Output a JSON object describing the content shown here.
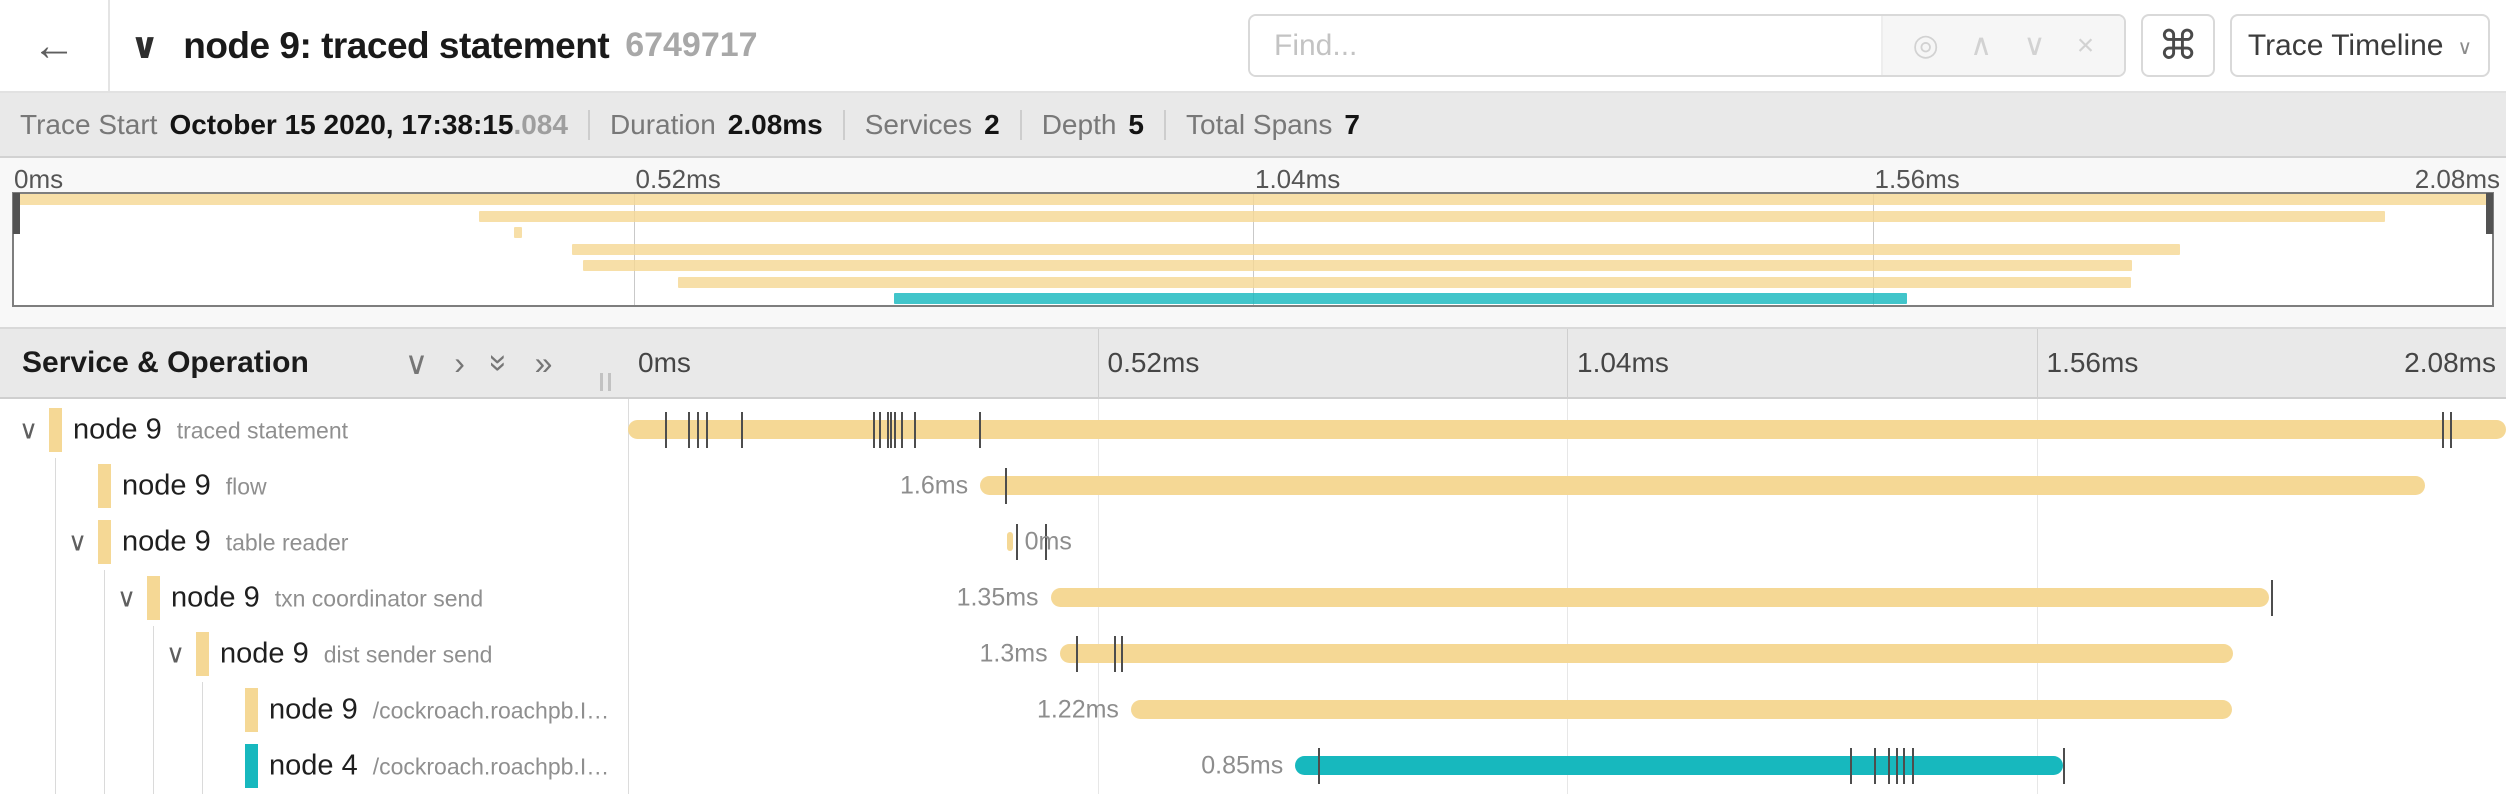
{
  "header": {
    "back_icon": "←",
    "collapse_icon": "∨",
    "title": "node 9: traced statement",
    "trace_id_short": "6749717",
    "find": {
      "placeholder": "Find...",
      "locate_icon": "◎",
      "prev_icon": "∧",
      "next_icon": "∨",
      "clear_icon": "×"
    },
    "shortcut_icon": "⌘",
    "view_dropdown": {
      "label": "Trace Timeline",
      "caret_icon": "∨"
    }
  },
  "summary": {
    "items": [
      {
        "label": "Trace Start",
        "value": "October 15 2020, 17:38:15",
        "suffix": ".084"
      },
      {
        "label": "Duration",
        "value": "2.08ms"
      },
      {
        "label": "Services",
        "value": "2"
      },
      {
        "label": "Depth",
        "value": "5"
      },
      {
        "label": "Total Spans",
        "value": "7"
      }
    ]
  },
  "timeline": {
    "duration_ms": 2.08,
    "tick_labels": [
      "0ms",
      "0.52ms",
      "1.04ms",
      "1.56ms",
      "2.08ms"
    ],
    "tick_times_ms": [
      0,
      0.52,
      1.04,
      1.56,
      2.08
    ]
  },
  "detail": {
    "header_title": "Service & Operation",
    "collapse_icons": {
      "chev_down": "∨",
      "chev_right": "›",
      "dbl_down": "»",
      "dbl_right": "»"
    }
  },
  "colors": {
    "tan": "#F5D895",
    "teal": "#17B8BE",
    "tick": "#4d4d4d"
  },
  "spans": [
    {
      "service": "node 9",
      "operation": "traced statement",
      "level": 0,
      "expander": true,
      "color": "#F5D895",
      "start_ms": 0,
      "duration_ms": 2.08,
      "duration_label": "",
      "label_side": "left",
      "log_ticks_ms": [
        0.042,
        0.068,
        0.078,
        0.087,
        0.126,
        0.272,
        0.279,
        0.288,
        0.291,
        0.296,
        0.303,
        0.318,
        0.39,
        2.01,
        2.019
      ]
    },
    {
      "service": "node 9",
      "operation": "flow",
      "level": 1,
      "expander": false,
      "color": "#F5D895",
      "start_ms": 0.39,
      "duration_ms": 1.6,
      "duration_label": "1.6ms",
      "label_side": "left",
      "log_ticks_ms": [
        0.419
      ]
    },
    {
      "service": "node 9",
      "operation": "table reader",
      "level": 1,
      "expander": true,
      "color": "#F5D895",
      "start_ms": 0.42,
      "duration_ms": 0.006,
      "duration_label": "0ms",
      "label_side": "right",
      "log_ticks_ms": [
        0.431,
        0.463
      ]
    },
    {
      "service": "node 9",
      "operation": "txn coordinator send",
      "level": 2,
      "expander": true,
      "color": "#F5D895",
      "start_ms": 0.468,
      "duration_ms": 1.35,
      "duration_label": "1.35ms",
      "label_side": "left",
      "log_ticks_ms": [
        1.821
      ]
    },
    {
      "service": "node 9",
      "operation": "dist sender send",
      "level": 3,
      "expander": true,
      "color": "#F5D895",
      "start_ms": 0.478,
      "duration_ms": 1.3,
      "duration_label": "1.3ms",
      "label_side": "left",
      "log_ticks_ms": [
        0.497,
        0.539,
        0.547
      ]
    },
    {
      "service": "node 9",
      "operation": "/cockroach.roachpb.I…",
      "level": 4,
      "expander": false,
      "color": "#F5D895",
      "start_ms": 0.557,
      "duration_ms": 1.22,
      "duration_label": "1.22ms",
      "label_side": "left",
      "log_ticks_ms": []
    },
    {
      "service": "node 4",
      "operation": "/cockroach.roachpb.I…",
      "level": 4,
      "expander": false,
      "color": "#17B8BE",
      "start_ms": 0.739,
      "duration_ms": 0.85,
      "duration_label": "0.85ms",
      "label_side": "left",
      "log_ticks_ms": [
        0.765,
        1.354,
        1.381,
        1.397,
        1.405,
        1.413,
        1.423,
        1.591
      ]
    }
  ]
}
